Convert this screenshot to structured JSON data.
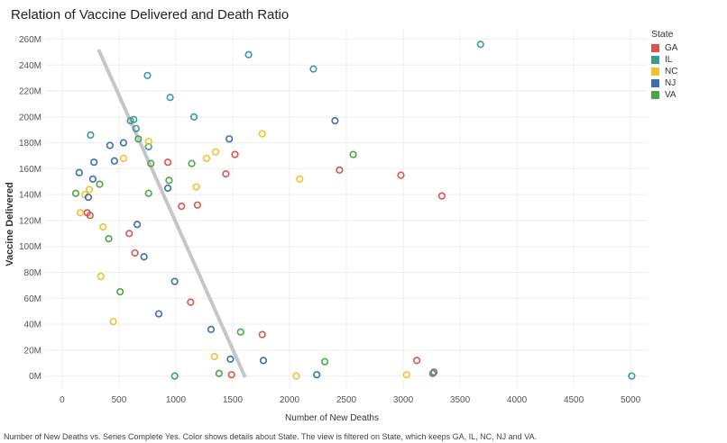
{
  "chart_data": {
    "type": "scatter",
    "title": "Relation of Vaccine Delivered and Death Ratio",
    "xlabel": "Number of New Deaths",
    "ylabel": "Vaccine Delivered",
    "xlim": [
      -150,
      5150
    ],
    "ylim": [
      -10,
      268
    ],
    "x_ticks": [
      0,
      500,
      1000,
      1500,
      2000,
      2500,
      3000,
      3500,
      4000,
      4500,
      5000
    ],
    "y_ticks": [
      0,
      20,
      40,
      60,
      80,
      100,
      120,
      140,
      160,
      180,
      200,
      220,
      240,
      260
    ],
    "y_tick_labels": [
      "0M",
      "20M",
      "40M",
      "60M",
      "80M",
      "100M",
      "120M",
      "140M",
      "160M",
      "180M",
      "200M",
      "220M",
      "240M",
      "260M"
    ],
    "grid": true,
    "legend": {
      "title": "State",
      "placement": "right"
    },
    "trend_line": {
      "x": [
        320,
        1610
      ],
      "y": [
        252,
        -1
      ],
      "color": "#c6c6c6"
    },
    "series": [
      {
        "name": "GA",
        "color": "#d9534f",
        "points": [
          [
            220,
            126
          ],
          [
            245,
            124
          ],
          [
            590,
            110
          ],
          [
            640,
            95
          ],
          [
            930,
            165
          ],
          [
            1050,
            131
          ],
          [
            1130,
            57
          ],
          [
            1190,
            132
          ],
          [
            1440,
            156
          ],
          [
            1520,
            171
          ],
          [
            1760,
            32
          ],
          [
            2440,
            159
          ],
          [
            2980,
            155
          ],
          [
            3340,
            139
          ],
          [
            3120,
            12
          ],
          [
            1490,
            1
          ],
          [
            3270,
            3
          ],
          [
            3260,
            2
          ]
        ]
      },
      {
        "name": "IL",
        "color": "#3a9c8f",
        "points": [
          [
            3680,
            256
          ],
          [
            1640,
            248
          ],
          [
            2210,
            237
          ],
          [
            750,
            232
          ],
          [
            950,
            215
          ],
          [
            1160,
            200
          ],
          [
            600,
            197
          ],
          [
            630,
            198
          ],
          [
            650,
            191
          ],
          [
            760,
            177
          ],
          [
            250,
            186
          ],
          [
            990,
            0
          ],
          [
            3270,
            3
          ],
          [
            5010,
            0
          ]
        ]
      },
      {
        "name": "NC",
        "color": "#f0c232",
        "points": [
          [
            1760,
            187
          ],
          [
            760,
            181
          ],
          [
            1350,
            173
          ],
          [
            1270,
            168
          ],
          [
            2090,
            152
          ],
          [
            1180,
            146
          ],
          [
            540,
            168
          ],
          [
            240,
            144
          ],
          [
            200,
            140
          ],
          [
            160,
            126
          ],
          [
            360,
            115
          ],
          [
            340,
            77
          ],
          [
            450,
            42
          ],
          [
            1340,
            15
          ],
          [
            2060,
            0
          ],
          [
            3030,
            1
          ]
        ]
      },
      {
        "name": "NJ",
        "color": "#3f6bb0",
        "points": [
          [
            1470,
            183
          ],
          [
            2400,
            197
          ],
          [
            540,
            180
          ],
          [
            420,
            178
          ],
          [
            280,
            165
          ],
          [
            460,
            166
          ],
          [
            150,
            157
          ],
          [
            270,
            152
          ],
          [
            930,
            145
          ],
          [
            230,
            138
          ],
          [
            660,
            117
          ],
          [
            720,
            92
          ],
          [
            990,
            73
          ],
          [
            850,
            48
          ],
          [
            1310,
            36
          ],
          [
            1480,
            13
          ],
          [
            1770,
            12
          ],
          [
            2240,
            1
          ]
        ]
      },
      {
        "name": "VA",
        "color": "#4aa548",
        "points": [
          [
            2560,
            171
          ],
          [
            1140,
            164
          ],
          [
            780,
            164
          ],
          [
            940,
            151
          ],
          [
            330,
            148
          ],
          [
            120,
            141
          ],
          [
            760,
            141
          ],
          [
            670,
            183
          ],
          [
            410,
            106
          ],
          [
            510,
            65
          ],
          [
            1570,
            34
          ],
          [
            2310,
            11
          ],
          [
            1380,
            2
          ]
        ]
      }
    ]
  },
  "caption": "Number of New Deaths vs. Series Complete Yes.  Color shows details about State. The view is filtered on State, which keeps GA, IL, NC, NJ and VA."
}
